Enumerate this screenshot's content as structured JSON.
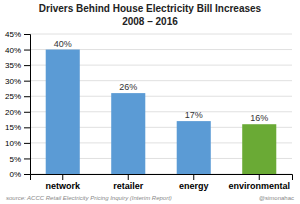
{
  "chart_data": {
    "type": "bar",
    "title": "Drivers Behind House Electricity Bill Increases",
    "subtitle": "2008 – 2016",
    "categories": [
      "network",
      "retailer",
      "energy",
      "environmental"
    ],
    "values": [
      40,
      26,
      17,
      16
    ],
    "value_labels": [
      "40%",
      "26%",
      "17%",
      "16%"
    ],
    "data_labels": true,
    "colors": [
      "#5b9bd5",
      "#5b9bd5",
      "#5b9bd5",
      "#6aaa35"
    ],
    "ylim": [
      0,
      45
    ],
    "yticks": [
      {
        "value": 0,
        "label": "0%"
      },
      {
        "value": 5,
        "label": "5%"
      },
      {
        "value": 10,
        "label": "10%"
      },
      {
        "value": 15,
        "label": "15%"
      },
      {
        "value": 20,
        "label": "20%"
      },
      {
        "value": 25,
        "label": "25%"
      },
      {
        "value": 30,
        "label": "30%"
      },
      {
        "value": 35,
        "label": "35%"
      },
      {
        "value": 40,
        "label": "40%"
      },
      {
        "value": 45,
        "label": "45%"
      }
    ],
    "grid": true,
    "annotations": [
      "source: ACCC Retail Electricity Pricing Inquiry (Interim Report)",
      "@simonahac"
    ]
  }
}
